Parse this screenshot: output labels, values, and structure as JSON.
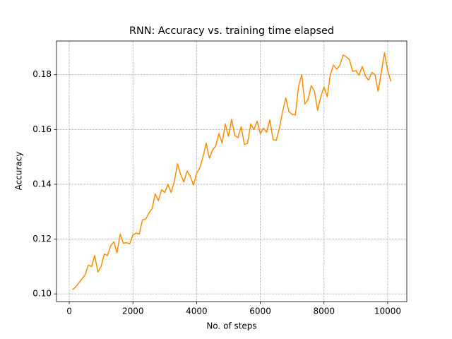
{
  "chart_data": {
    "type": "line",
    "title": "RNN: Accuracy vs. training time elapsed",
    "x_label": "No. of steps",
    "y_label": "Accuracy",
    "x": [
      100,
      200,
      300,
      400,
      500,
      600,
      700,
      800,
      900,
      1000,
      1100,
      1200,
      1300,
      1400,
      1500,
      1600,
      1700,
      1800,
      1900,
      2000,
      2100,
      2200,
      2300,
      2400,
      2500,
      2600,
      2700,
      2800,
      2900,
      3000,
      3100,
      3200,
      3300,
      3400,
      3500,
      3600,
      3700,
      3800,
      3900,
      4000,
      4100,
      4200,
      4300,
      4400,
      4500,
      4600,
      4700,
      4800,
      4900,
      5000,
      5100,
      5200,
      5300,
      5400,
      5500,
      5600,
      5700,
      5800,
      5900,
      6000,
      6100,
      6200,
      6300,
      6400,
      6500,
      6600,
      6700,
      6800,
      6900,
      7000,
      7100,
      7200,
      7300,
      7400,
      7500,
      7600,
      7700,
      7800,
      7900,
      8000,
      8100,
      8200,
      8300,
      8400,
      8500,
      8600,
      8700,
      8800,
      8900,
      9000,
      9100,
      9200,
      9300,
      9400,
      9500,
      9600,
      9700,
      9800,
      9900,
      10000,
      10100
    ],
    "series": [
      {
        "name": "Accuracy",
        "color": "#ff8c00",
        "values": [
          0.1015,
          0.1025,
          0.104,
          0.1055,
          0.107,
          0.1105,
          0.11,
          0.114,
          0.108,
          0.11,
          0.1145,
          0.114,
          0.1175,
          0.119,
          0.115,
          0.1218,
          0.1185,
          0.1187,
          0.1183,
          0.1215,
          0.1222,
          0.1218,
          0.127,
          0.1273,
          0.1295,
          0.131,
          0.1365,
          0.134,
          0.138,
          0.137,
          0.14,
          0.137,
          0.141,
          0.1475,
          0.1435,
          0.1408,
          0.1448,
          0.143,
          0.1397,
          0.144,
          0.146,
          0.15,
          0.155,
          0.1495,
          0.1525,
          0.154,
          0.1585,
          0.155,
          0.162,
          0.1575,
          0.1637,
          0.1578,
          0.157,
          0.161,
          0.1545,
          0.155,
          0.162,
          0.16,
          0.163,
          0.1585,
          0.1605,
          0.159,
          0.1635,
          0.1563,
          0.156,
          0.1605,
          0.1665,
          0.1715,
          0.1665,
          0.1655,
          0.1653,
          0.1755,
          0.18,
          0.1693,
          0.171,
          0.176,
          0.174,
          0.167,
          0.172,
          0.1755,
          0.172,
          0.18,
          0.1835,
          0.182,
          0.1835,
          0.1872,
          0.1865,
          0.1855,
          0.1812,
          0.1815,
          0.1798,
          0.183,
          0.1795,
          0.178,
          0.1808,
          0.18,
          0.174,
          0.181,
          0.188,
          0.1815,
          0.1775
        ]
      }
    ],
    "xlim": [
      -400,
      10600
    ],
    "ylim": [
      0.0972,
      0.1923
    ],
    "xticks": [
      0,
      2000,
      4000,
      6000,
      8000,
      10000
    ],
    "yticks": [
      {
        "value": 0.1,
        "label": "0.10"
      },
      0.12,
      0.14,
      0.16,
      0.18
    ],
    "grid": true
  }
}
